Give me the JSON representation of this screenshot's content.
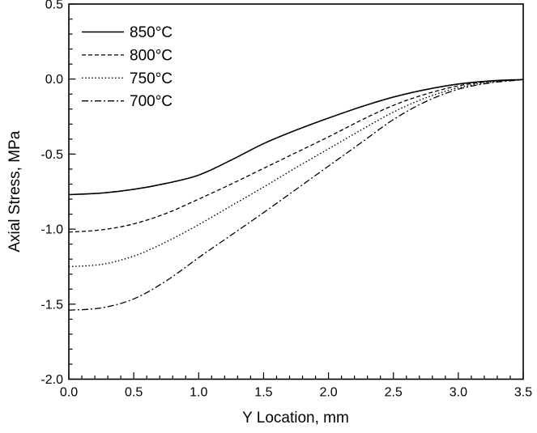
{
  "figure": {
    "background": "#ffffff",
    "axis_color": "#000000"
  },
  "chart_data": {
    "type": "line",
    "title": "",
    "xlabel": "Y Location, mm",
    "ylabel": "Axial Stress, MPa",
    "xlim": [
      0,
      3.5
    ],
    "ylim": [
      -2.0,
      0.5
    ],
    "xticks": [
      0.0,
      0.5,
      1.0,
      1.5,
      2.0,
      2.5,
      3.0,
      3.5
    ],
    "xtick_labels": [
      "0.0",
      "0.5",
      "1.0",
      "1.5",
      "2.0",
      "2.5",
      "3.0",
      "3.5"
    ],
    "yticks": [
      0.5,
      0.0,
      -0.5,
      -1.0,
      -1.5,
      -2.0
    ],
    "ytick_labels": [
      "0.5",
      "0.0",
      "-0.5",
      "-1.0",
      "-1.5",
      "-2.0"
    ],
    "minor_tick_step": 0.1,
    "grid": false,
    "legend_position": "top-left",
    "x": [
      0,
      0.25,
      0.5,
      0.75,
      1.0,
      1.25,
      1.5,
      1.75,
      2.0,
      2.25,
      2.5,
      2.75,
      3.0,
      3.25,
      3.5
    ],
    "series": [
      {
        "name": "850°C",
        "line_style": "solid",
        "color": "#000000",
        "values": [
          -0.77,
          -0.76,
          -0.735,
          -0.695,
          -0.64,
          -0.54,
          -0.43,
          -0.34,
          -0.26,
          -0.185,
          -0.12,
          -0.07,
          -0.033,
          -0.012,
          -0.003
        ]
      },
      {
        "name": "800°C",
        "line_style": "dash",
        "color": "#000000",
        "values": [
          -1.02,
          -1.005,
          -0.965,
          -0.895,
          -0.8,
          -0.7,
          -0.595,
          -0.49,
          -0.385,
          -0.275,
          -0.175,
          -0.1,
          -0.045,
          -0.015,
          -0.003
        ]
      },
      {
        "name": "750°C",
        "line_style": "dot",
        "color": "#000000",
        "values": [
          -1.25,
          -1.235,
          -1.18,
          -1.085,
          -0.97,
          -0.845,
          -0.72,
          -0.59,
          -0.465,
          -0.34,
          -0.22,
          -0.125,
          -0.058,
          -0.02,
          -0.004
        ]
      },
      {
        "name": "700°C",
        "line_style": "dash-dot",
        "color": "#000000",
        "values": [
          -1.54,
          -1.525,
          -1.465,
          -1.345,
          -1.19,
          -1.04,
          -0.89,
          -0.735,
          -0.58,
          -0.425,
          -0.27,
          -0.15,
          -0.068,
          -0.025,
          -0.005
        ]
      }
    ]
  }
}
